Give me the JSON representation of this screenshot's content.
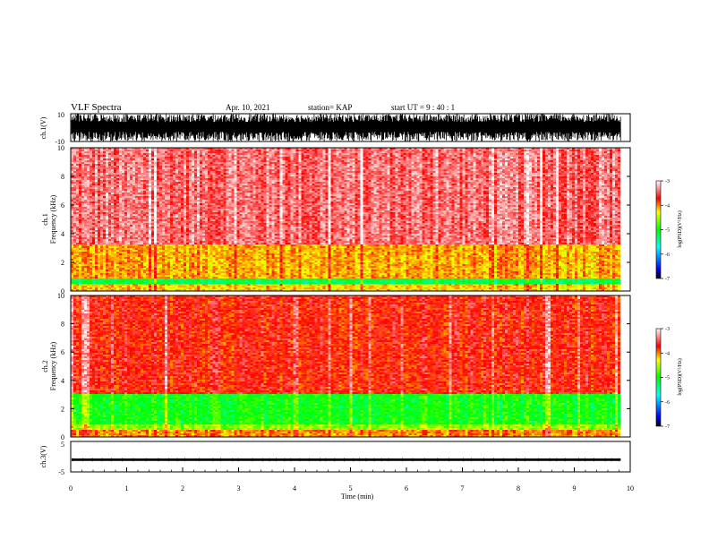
{
  "header": {
    "title": "VLF Spectra",
    "date": "Apr. 10, 2021",
    "station": "station= KAP",
    "start": "start  UT =   9 : 40 : 1"
  },
  "chart_data": [
    {
      "type": "line",
      "ylabel": "ch.1(V)",
      "ylim": [
        -10,
        10
      ],
      "y_ticks": [
        "10",
        "-10"
      ],
      "xlim": [
        0,
        10
      ],
      "description_values": {
        "amplitude_range": [
          -10,
          10
        ],
        "end_time_min": 9.83
      }
    },
    {
      "type": "heatmap",
      "ylabel": "ch.1\nFrequency (kHz)",
      "ylabel_lines": [
        "ch.1",
        "Frequency (kHz)"
      ],
      "ylim": [
        0,
        10
      ],
      "y_ticks": [
        "0",
        "2",
        "4",
        "6",
        "8",
        "10"
      ],
      "xlim": [
        0,
        9.83
      ],
      "colorbar": {
        "label": "log(PSD)(V²/Hz)",
        "range": [
          -7,
          -3
        ],
        "ticks": [
          "-3",
          "-4",
          "-5",
          "-6",
          "-7"
        ]
      },
      "bands": [
        {
          "kHz": [
            0,
            0.5
          ],
          "level": -4.2
        },
        {
          "kHz": [
            0.5,
            0.9
          ],
          "level": -5.2
        },
        {
          "kHz": [
            0.9,
            3.2
          ],
          "level": -4.1
        },
        {
          "kHz": [
            3.2,
            10
          ],
          "level": -3.4
        }
      ]
    },
    {
      "type": "heatmap",
      "ylabel_lines": [
        "ch.2",
        "Frequency (kHz)"
      ],
      "ylim": [
        0,
        10
      ],
      "y_ticks": [
        "0",
        "2",
        "4",
        "6",
        "8",
        "10"
      ],
      "xlim": [
        0,
        9.83
      ],
      "colorbar": {
        "label": "log(PSD)(V²/Hz)",
        "range": [
          -7,
          -3
        ],
        "ticks": [
          "-3",
          "-4",
          "-5",
          "-6",
          "-7"
        ]
      },
      "bands": [
        {
          "kHz": [
            0,
            0.5
          ],
          "level": -4.0
        },
        {
          "kHz": [
            0.5,
            0.9
          ],
          "level": -4.6
        },
        {
          "kHz": [
            0.9,
            3.0
          ],
          "level": -5.0
        },
        {
          "kHz": [
            3.0,
            10
          ],
          "level": -3.7
        }
      ]
    },
    {
      "type": "line",
      "ylabel": "ch.3(V)",
      "ylim": [
        -5,
        5
      ],
      "y_ticks": [
        "5",
        "-5"
      ],
      "xlim": [
        0,
        10
      ],
      "description_values": {
        "level_V": -1,
        "end_time_min": 9.83
      }
    }
  ],
  "x_axis": {
    "label": "Time (min)",
    "ticks": [
      "0",
      "1",
      "2",
      "3",
      "4",
      "5",
      "6",
      "7",
      "8",
      "9",
      "10"
    ],
    "range": [
      0,
      10
    ]
  },
  "colors": {
    "white": "#ffffff",
    "red": "#ff0000",
    "yellow": "#ffff00",
    "green": "#00ff00",
    "blue": "#0000ff",
    "black": "#000000"
  }
}
